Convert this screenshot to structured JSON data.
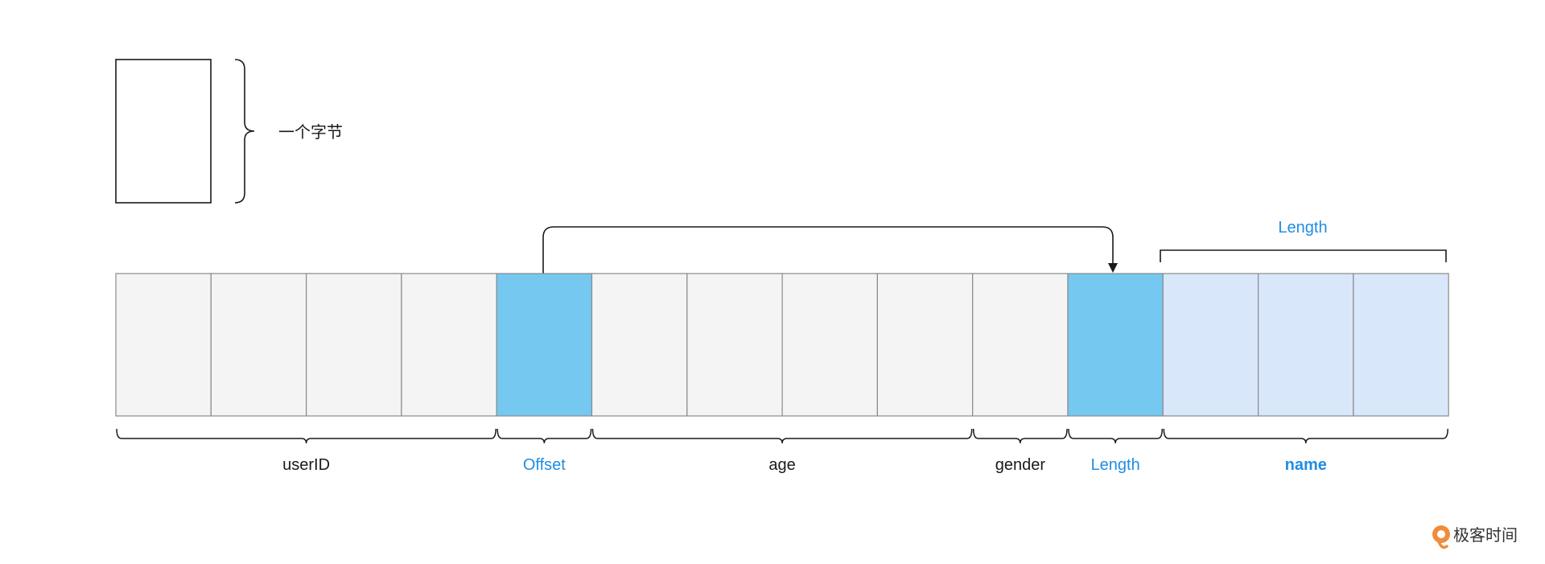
{
  "legend": {
    "label": "一个字节"
  },
  "bytes": [
    {
      "role": "userID",
      "fill": "#f4f4f4"
    },
    {
      "role": "userID",
      "fill": "#f4f4f4"
    },
    {
      "role": "userID",
      "fill": "#f4f4f4"
    },
    {
      "role": "userID",
      "fill": "#f4f4f4"
    },
    {
      "role": "offset",
      "fill": "#75c8f0"
    },
    {
      "role": "age",
      "fill": "#f4f4f4"
    },
    {
      "role": "age",
      "fill": "#f4f4f4"
    },
    {
      "role": "age",
      "fill": "#f4f4f4"
    },
    {
      "role": "age",
      "fill": "#f4f4f4"
    },
    {
      "role": "gender",
      "fill": "#f4f4f4"
    },
    {
      "role": "length",
      "fill": "#75c8f0"
    },
    {
      "role": "name",
      "fill": "#d9e7fb"
    },
    {
      "role": "name",
      "fill": "#d9e7fb"
    },
    {
      "role": "name",
      "fill": "#d9e7fb"
    }
  ],
  "fields": [
    {
      "label": "userID",
      "color": "#1a1a1a",
      "bold": false
    },
    {
      "label": "Offset",
      "color": "#1f8de4",
      "bold": false
    },
    {
      "label": "age",
      "color": "#1a1a1a",
      "bold": false
    },
    {
      "label": "gender",
      "color": "#1a1a1a",
      "bold": false
    },
    {
      "label": "Length",
      "color": "#1f8de4",
      "bold": false
    },
    {
      "label": "name",
      "color": "#1f8de4",
      "bold": true
    }
  ],
  "name_length_label": "Length",
  "colors": {
    "accent_blue": "#1f8de4",
    "pointer_cell": "#75c8f0",
    "name_cell": "#d9e7fb",
    "plain_cell": "#f4f4f4",
    "cell_border": "#8a8a8a"
  },
  "watermark": {
    "text": "极客时间"
  }
}
